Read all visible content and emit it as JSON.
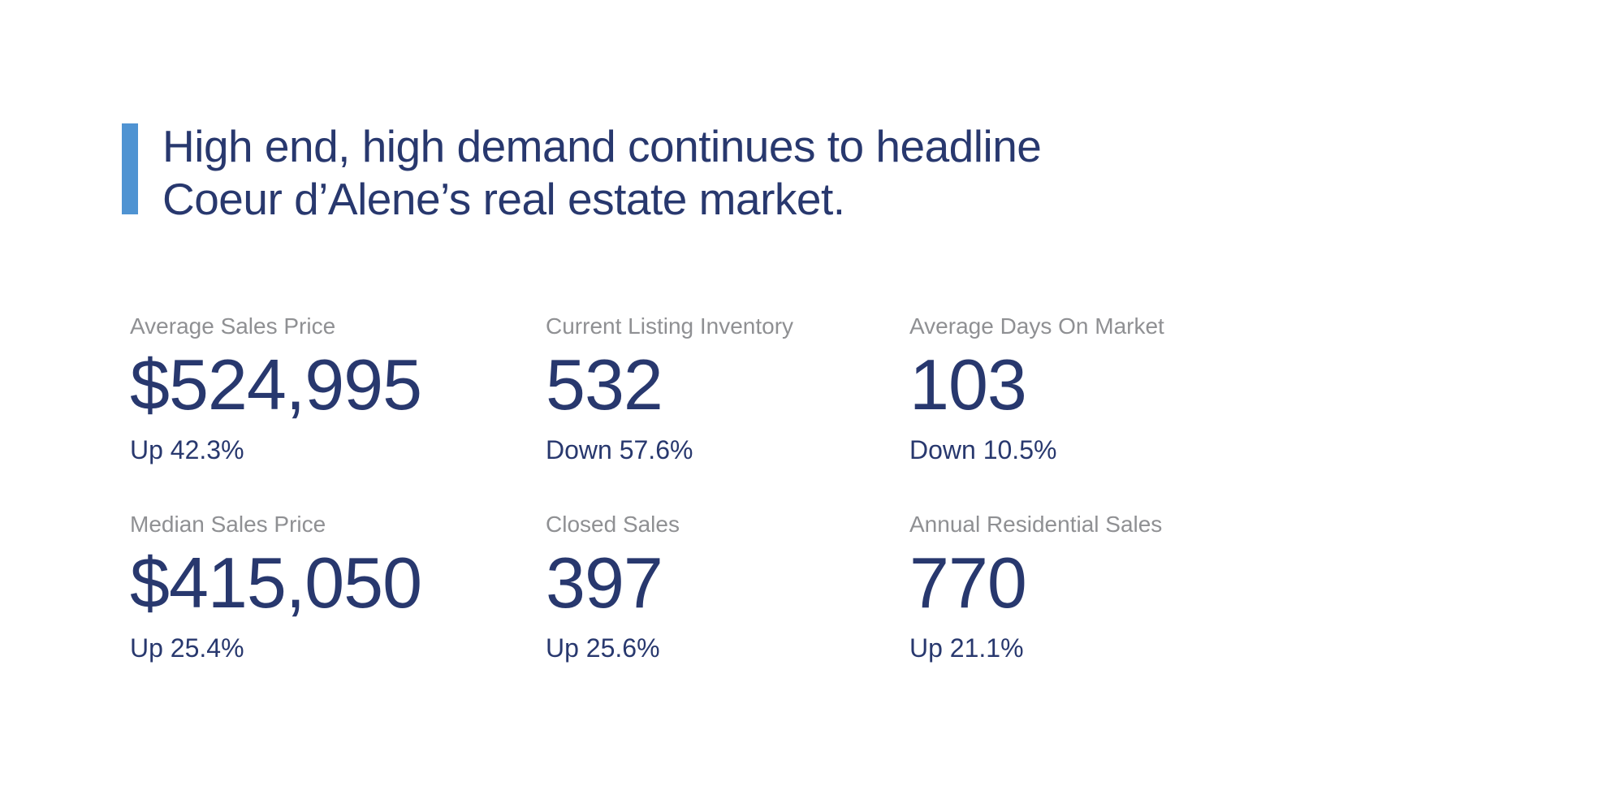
{
  "page": {
    "background_color": "#ffffff"
  },
  "headline": {
    "line1": "High end, high demand continues to headline",
    "line2": "Coeur d’Alene’s real estate market.",
    "accent_bar_color": "#4f93d2",
    "text_color": "#28386e"
  },
  "stats": {
    "label_color": "#8f9093",
    "value_color": "#28386e",
    "items": [
      {
        "label": "Average Sales Price",
        "value": "$524,995",
        "delta": "Up 42.3%"
      },
      {
        "label": "Current Listing Inventory",
        "value": "532",
        "delta": "Down 57.6%"
      },
      {
        "label": "Average Days On Market",
        "value": "103",
        "delta": "Down 10.5%"
      },
      {
        "label": "Median Sales Price",
        "value": "$415,050",
        "delta": "Up 25.4%"
      },
      {
        "label": "Closed Sales",
        "value": "397",
        "delta": "Up 25.6%"
      },
      {
        "label": "Annual Residential Sales",
        "value": "770",
        "delta": "Up 21.1%"
      }
    ]
  }
}
